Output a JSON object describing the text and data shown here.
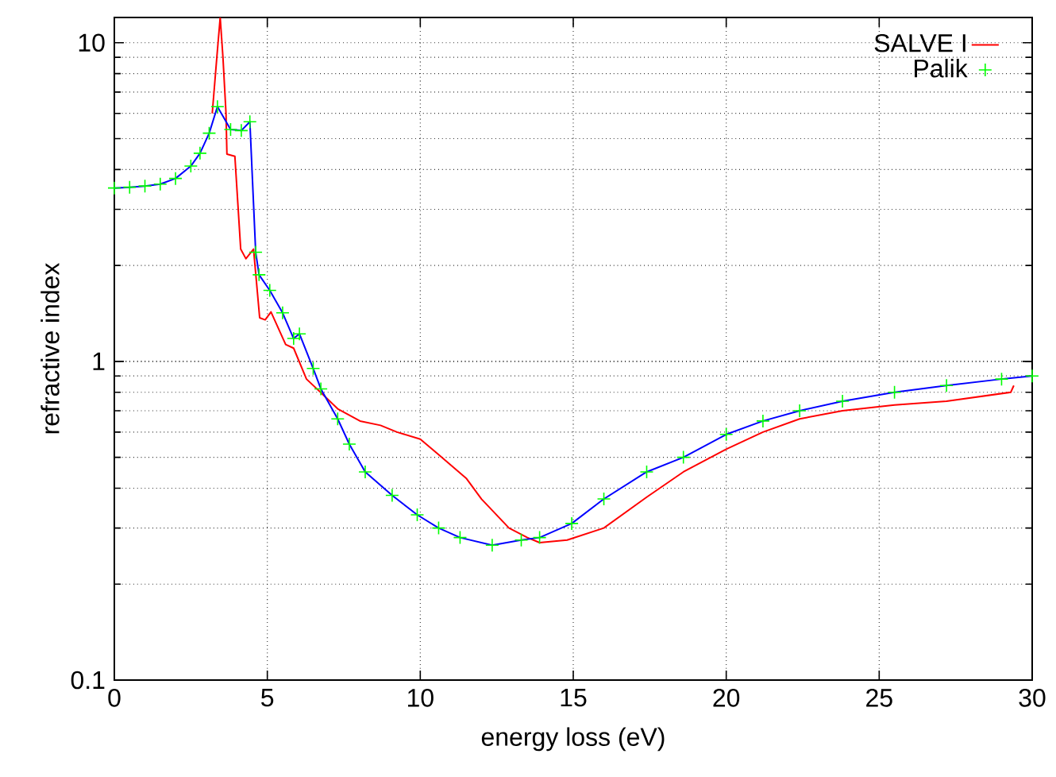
{
  "chart_data": {
    "type": "line",
    "xlabel": "energy loss (eV)",
    "ylabel": "refractive index",
    "xlim": [
      0,
      30
    ],
    "ylim": [
      0.1,
      12
    ],
    "xticks": [
      0,
      5,
      10,
      15,
      20,
      25,
      30
    ],
    "yticks": [
      0.1,
      1,
      10
    ],
    "log": "y",
    "grid": true,
    "legend": "top right",
    "series": [
      {
        "name": "SALVE I",
        "color": "#ff0000",
        "marker": "none",
        "x": [
          3.2,
          3.35,
          3.46,
          3.55,
          3.65,
          3.68,
          3.94,
          4.13,
          4.3,
          4.55,
          4.75,
          4.93,
          5.12,
          5.6,
          5.86,
          6.28,
          6.8,
          7.3,
          8.03,
          8.7,
          9.24,
          10,
          10.6,
          11.5,
          12,
          12.9,
          13.5,
          13.9,
          14.8,
          16,
          17.4,
          18.6,
          20,
          21.2,
          22.4,
          23.8,
          25.5,
          27.2,
          29.3,
          29.4
        ],
        "values": [
          6.0,
          9,
          12,
          9,
          6,
          4.47,
          4.4,
          2.25,
          2.1,
          2.25,
          1.37,
          1.35,
          1.43,
          1.13,
          1.1,
          0.88,
          0.79,
          0.71,
          0.65,
          0.63,
          0.6,
          0.57,
          0.51,
          0.43,
          0.37,
          0.3,
          0.28,
          0.27,
          0.275,
          0.3,
          0.375,
          0.45,
          0.53,
          0.6,
          0.66,
          0.7,
          0.73,
          0.75,
          0.8,
          0.84
        ]
      },
      {
        "name": "Palik",
        "color": "#00ff00",
        "type": "scatter",
        "marker": "cross",
        "x": [
          0,
          0.5,
          1,
          1.5,
          2,
          2.5,
          2.8,
          3.1,
          3.37,
          3.8,
          4.15,
          4.43,
          4.62,
          4.73,
          5.08,
          5.5,
          5.86,
          6.05,
          6.5,
          6.75,
          7.3,
          7.68,
          8.2,
          9.08,
          9.9,
          10.6,
          11.3,
          12.35,
          13.3,
          13.9,
          14.95,
          16,
          17.4,
          18.6,
          20,
          21.2,
          22.4,
          23.8,
          25.5,
          27.2,
          29,
          30
        ],
        "values": [
          3.5,
          3.52,
          3.55,
          3.6,
          3.75,
          4.1,
          4.5,
          5.2,
          6.3,
          5.34,
          5.3,
          5.65,
          2.2,
          1.87,
          1.67,
          1.42,
          1.18,
          1.22,
          0.95,
          0.82,
          0.66,
          0.55,
          0.45,
          0.38,
          0.33,
          0.3,
          0.28,
          0.265,
          0.275,
          0.28,
          0.31,
          0.37,
          0.45,
          0.5,
          0.59,
          0.65,
          0.7,
          0.75,
          0.8,
          0.84,
          0.88,
          0.9
        ]
      },
      {
        "color": "#0000ff",
        "marker": "none",
        "x": [
          0,
          0.5,
          1,
          1.5,
          2,
          2.5,
          2.8,
          3.1,
          3.37,
          3.8,
          4.15,
          4.43,
          4.62,
          4.73,
          5.08,
          5.5,
          5.86,
          6.05,
          6.5,
          6.75,
          7.3,
          7.68,
          8.2,
          9.08,
          9.9,
          10.6,
          11.3,
          12.35,
          13.3,
          13.9,
          14.95,
          16,
          17.4,
          18.6,
          20,
          21.2,
          22.4,
          23.8,
          25.5,
          27.2,
          29,
          30
        ],
        "values": [
          3.5,
          3.52,
          3.55,
          3.6,
          3.75,
          4.1,
          4.5,
          5.2,
          6.3,
          5.34,
          5.3,
          5.65,
          2.2,
          1.87,
          1.67,
          1.42,
          1.18,
          1.22,
          0.95,
          0.82,
          0.66,
          0.55,
          0.45,
          0.38,
          0.33,
          0.3,
          0.28,
          0.265,
          0.275,
          0.28,
          0.31,
          0.37,
          0.45,
          0.5,
          0.59,
          0.65,
          0.7,
          0.75,
          0.8,
          0.84,
          0.88,
          0.9
        ]
      }
    ]
  }
}
